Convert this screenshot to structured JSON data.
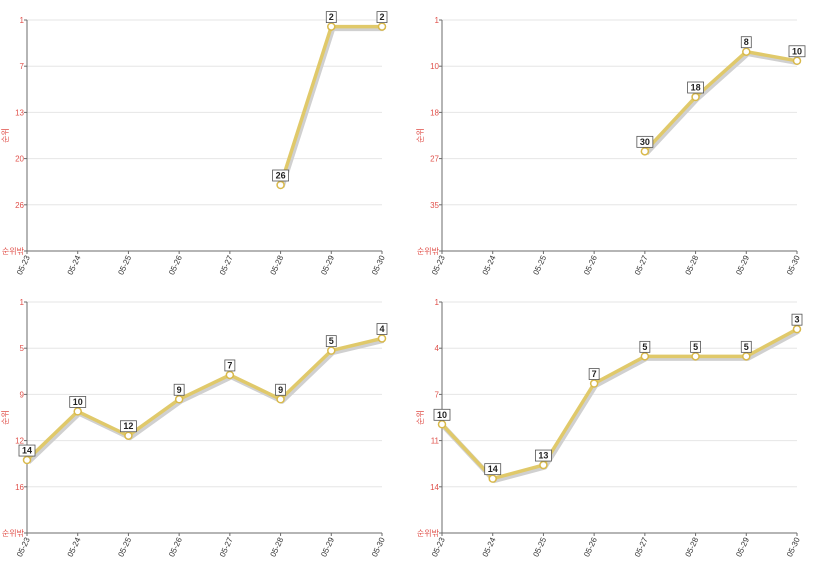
{
  "chart_data": [
    {
      "type": "line",
      "ylabel": "순위",
      "y_reversed": true,
      "ylim": [
        1,
        36
      ],
      "y_ticks": [
        "1",
        "7",
        "13",
        "20",
        "26",
        "순위밖"
      ],
      "categories": [
        "05-23",
        "05-24",
        "05-25",
        "05-26",
        "05-27",
        "05-28",
        "05-29",
        "05-30"
      ],
      "series": [
        {
          "values": [
            null,
            null,
            null,
            null,
            null,
            26,
            2,
            2
          ]
        }
      ],
      "grid": true,
      "colors": {
        "line": "#e0c96a",
        "tick_label": "#e0504a"
      }
    },
    {
      "type": "line",
      "ylabel": "순위",
      "y_reversed": true,
      "ylim": [
        1,
        52
      ],
      "y_ticks": [
        "1",
        "10",
        "18",
        "27",
        "35",
        "순위밖"
      ],
      "categories": [
        "05-23",
        "05-24",
        "05-25",
        "05-26",
        "05-27",
        "05-28",
        "05-29",
        "05-30"
      ],
      "series": [
        {
          "values": [
            null,
            null,
            null,
            null,
            30,
            18,
            8,
            10
          ]
        }
      ],
      "grid": true,
      "colors": {
        "line": "#e0c96a",
        "tick_label": "#e0504a"
      }
    },
    {
      "type": "line",
      "ylabel": "순위",
      "y_reversed": true,
      "ylim": [
        1,
        20
      ],
      "y_ticks": [
        "1",
        "5",
        "9",
        "12",
        "16",
        "순위밖"
      ],
      "categories": [
        "05-23",
        "05-24",
        "05-25",
        "05-26",
        "05-27",
        "05-28",
        "05-29",
        "05-30"
      ],
      "series": [
        {
          "values": [
            14,
            10,
            12,
            9,
            7,
            9,
            5,
            4
          ]
        }
      ],
      "grid": true,
      "colors": {
        "line": "#e0c96a",
        "tick_label": "#e0504a"
      }
    },
    {
      "type": "line",
      "ylabel": "순위",
      "y_reversed": true,
      "ylim": [
        1,
        18
      ],
      "y_ticks": [
        "1",
        "4",
        "7",
        "11",
        "14",
        "순위밖"
      ],
      "categories": [
        "05-23",
        "05-24",
        "05-25",
        "05-26",
        "05-27",
        "05-28",
        "05-29",
        "05-30"
      ],
      "series": [
        {
          "values": [
            10,
            14,
            13,
            7,
            5,
            5,
            5,
            3
          ]
        }
      ],
      "grid": true,
      "colors": {
        "line": "#e0c96a",
        "tick_label": "#e0504a"
      }
    }
  ]
}
